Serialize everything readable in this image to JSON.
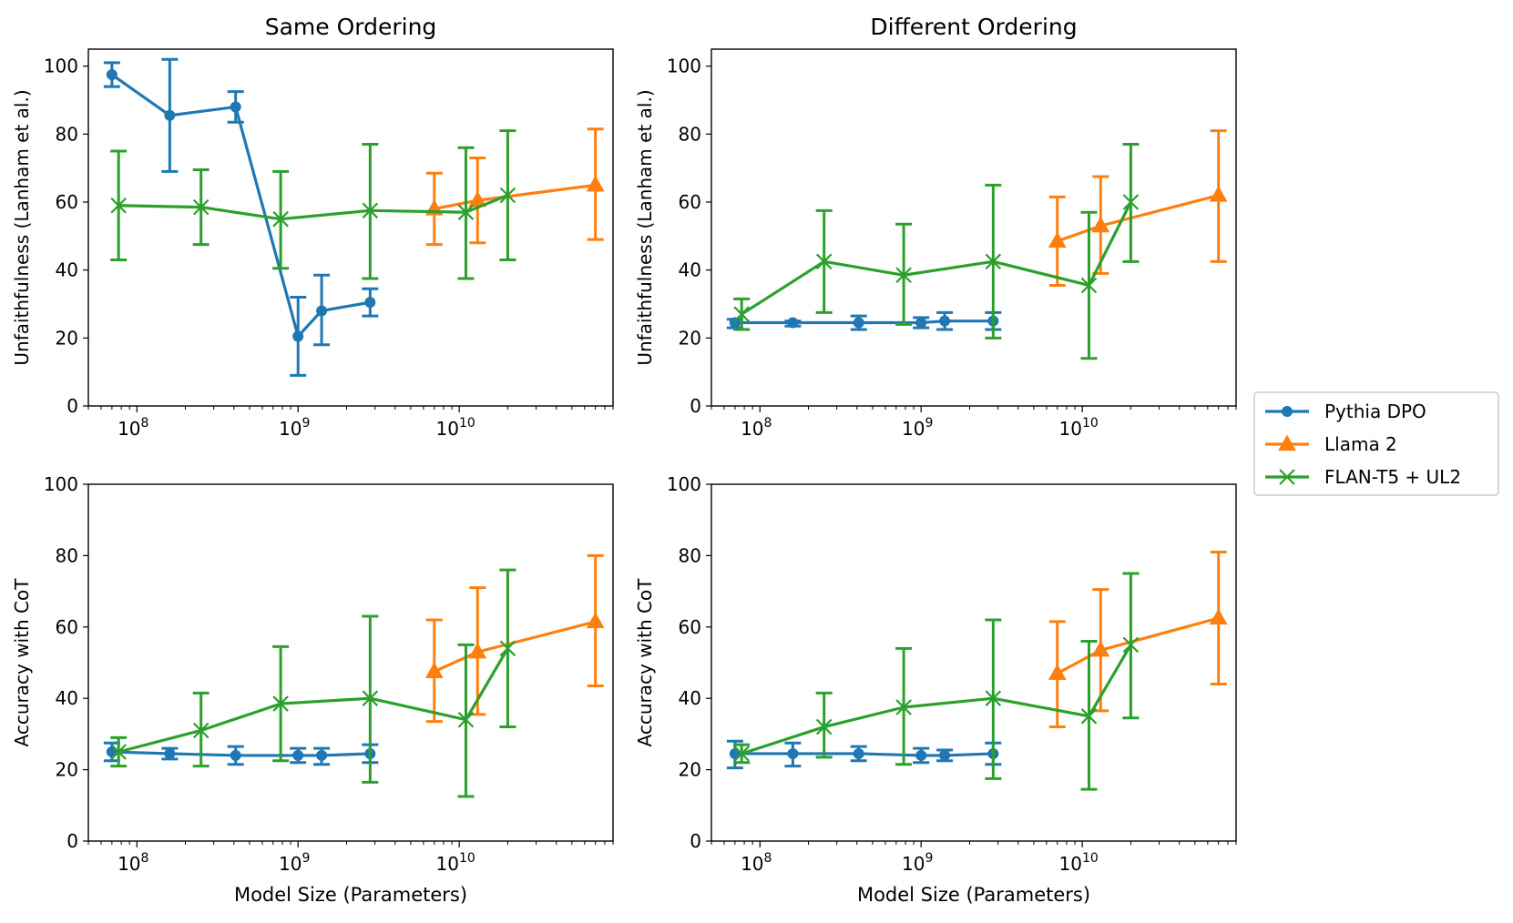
{
  "colors": {
    "pythia": "#1f77b4",
    "llama": "#ff7f0e",
    "flan": "#2ca02c",
    "axis": "#000000",
    "legend_border": "#cccccc"
  },
  "legend": [
    {
      "label": "Pythia DPO",
      "marker": "circle",
      "color_key": "pythia"
    },
    {
      "label": "Llama 2",
      "marker": "triangle",
      "color_key": "llama"
    },
    {
      "label": "FLAN-T5 + UL2",
      "marker": "x",
      "color_key": "flan"
    }
  ],
  "chart_data": [
    {
      "id": "same-unfaith",
      "type": "line",
      "title": "Same Ordering",
      "xlabel": "",
      "ylabel": "Unfaithfulness (Lanham et al.)",
      "xscale": "log",
      "xlim": [
        50000000,
        90000000000
      ],
      "ylim": [
        0,
        105
      ],
      "yticks": [
        0,
        20,
        40,
        60,
        80,
        100
      ],
      "xticks": [
        {
          "value": 100000000,
          "base": "10",
          "exp": "8"
        },
        {
          "value": 1000000000,
          "base": "10",
          "exp": "9"
        },
        {
          "value": 10000000000,
          "base": "10",
          "exp": "10"
        }
      ],
      "series": [
        {
          "name": "Pythia DPO",
          "x": [
            70000000,
            160000000,
            410000000,
            1000000000,
            1400000000,
            2800000000
          ],
          "y": [
            97.5,
            85.5,
            88,
            20.5,
            28,
            30.5
          ],
          "err_low": [
            94,
            69,
            83.5,
            9,
            18,
            26.5
          ],
          "err_high": [
            101,
            102,
            92.5,
            32,
            38.5,
            34.5
          ]
        },
        {
          "name": "Llama 2",
          "x": [
            7000000000,
            13000000000,
            70000000000
          ],
          "y": [
            58,
            60.5,
            65
          ],
          "err_low": [
            47.5,
            48,
            49
          ],
          "err_high": [
            68.5,
            73,
            81.5
          ]
        },
        {
          "name": "FLAN-T5 + UL2",
          "x": [
            77000000,
            250000000,
            780000000,
            2800000000,
            11000000000,
            20000000000
          ],
          "y": [
            59,
            58.5,
            55,
            57.5,
            57,
            62
          ],
          "err_low": [
            43,
            47.5,
            40.5,
            37.5,
            37.5,
            43
          ],
          "err_high": [
            75,
            69.5,
            69,
            77,
            76,
            81
          ]
        }
      ]
    },
    {
      "id": "diff-unfaith",
      "type": "line",
      "title": "Different Ordering",
      "xlabel": "",
      "ylabel": "Unfaithfulness (Lanham et al.)",
      "xscale": "log",
      "xlim": [
        50000000,
        90000000000
      ],
      "ylim": [
        0,
        105
      ],
      "yticks": [
        0,
        20,
        40,
        60,
        80,
        100
      ],
      "xticks": [
        {
          "value": 100000000,
          "base": "10",
          "exp": "8"
        },
        {
          "value": 1000000000,
          "base": "10",
          "exp": "9"
        },
        {
          "value": 10000000000,
          "base": "10",
          "exp": "10"
        }
      ],
      "series": [
        {
          "name": "Pythia DPO",
          "x": [
            70000000,
            160000000,
            410000000,
            1000000000,
            1400000000,
            2800000000
          ],
          "y": [
            24.5,
            24.5,
            24.5,
            24.5,
            25,
            25
          ],
          "err_low": [
            23,
            23.5,
            22.5,
            23,
            22.5,
            22.5
          ],
          "err_high": [
            25.5,
            25,
            26.5,
            26,
            27.5,
            27.5
          ]
        },
        {
          "name": "Llama 2",
          "x": [
            7000000000,
            13000000000,
            70000000000
          ],
          "y": [
            48.5,
            53,
            62
          ],
          "err_low": [
            35.5,
            39,
            42.5
          ],
          "err_high": [
            61.5,
            67.5,
            81
          ]
        },
        {
          "name": "FLAN-T5 + UL2",
          "x": [
            77000000,
            250000000,
            780000000,
            2800000000,
            11000000000,
            20000000000
          ],
          "y": [
            27,
            42.5,
            38.5,
            42.5,
            35.5,
            60
          ],
          "err_low": [
            22.5,
            27.5,
            24,
            20,
            14,
            42.5
          ],
          "err_high": [
            31.5,
            57.5,
            53.5,
            65,
            57,
            77
          ]
        }
      ]
    },
    {
      "id": "same-acc",
      "type": "line",
      "title": "",
      "xlabel": "Model Size (Parameters)",
      "ylabel": "Accuracy with CoT",
      "xscale": "log",
      "xlim": [
        50000000,
        90000000000
      ],
      "ylim": [
        0,
        100
      ],
      "yticks": [
        0,
        20,
        40,
        60,
        80,
        100
      ],
      "xticks": [
        {
          "value": 100000000,
          "base": "10",
          "exp": "8"
        },
        {
          "value": 1000000000,
          "base": "10",
          "exp": "9"
        },
        {
          "value": 10000000000,
          "base": "10",
          "exp": "10"
        }
      ],
      "series": [
        {
          "name": "Pythia DPO",
          "x": [
            70000000,
            160000000,
            410000000,
            1000000000,
            1400000000,
            2800000000
          ],
          "y": [
            25,
            24.5,
            24,
            24,
            24,
            24.5
          ],
          "err_low": [
            22.5,
            23,
            21.5,
            22,
            21.5,
            22
          ],
          "err_high": [
            27.5,
            26,
            26.5,
            26,
            26,
            27
          ]
        },
        {
          "name": "Llama 2",
          "x": [
            7000000000,
            13000000000,
            70000000000
          ],
          "y": [
            47.5,
            53,
            61.5
          ],
          "err_low": [
            33.5,
            35.5,
            43.5
          ],
          "err_high": [
            62,
            71,
            80
          ]
        },
        {
          "name": "FLAN-T5 + UL2",
          "x": [
            77000000,
            250000000,
            780000000,
            2800000000,
            11000000000,
            20000000000
          ],
          "y": [
            25,
            31,
            38.5,
            40,
            34,
            54
          ],
          "err_low": [
            21,
            21,
            22.5,
            16.5,
            12.5,
            32
          ],
          "err_high": [
            29,
            41.5,
            54.5,
            63,
            55,
            76
          ]
        }
      ]
    },
    {
      "id": "diff-acc",
      "type": "line",
      "title": "",
      "xlabel": "Model Size (Parameters)",
      "ylabel": "Accuracy with CoT",
      "xscale": "log",
      "xlim": [
        50000000,
        90000000000
      ],
      "ylim": [
        0,
        100
      ],
      "yticks": [
        0,
        20,
        40,
        60,
        80,
        100
      ],
      "xticks": [
        {
          "value": 100000000,
          "base": "10",
          "exp": "8"
        },
        {
          "value": 1000000000,
          "base": "10",
          "exp": "9"
        },
        {
          "value": 10000000000,
          "base": "10",
          "exp": "10"
        }
      ],
      "series": [
        {
          "name": "Pythia DPO",
          "x": [
            70000000,
            160000000,
            410000000,
            1000000000,
            1400000000,
            2800000000
          ],
          "y": [
            24.5,
            24.5,
            24.5,
            24,
            24,
            24.5
          ],
          "err_low": [
            20.5,
            21,
            22.5,
            22,
            22.5,
            21.5
          ],
          "err_high": [
            28,
            27.5,
            26.5,
            26,
            25.5,
            27.5
          ]
        },
        {
          "name": "Llama 2",
          "x": [
            7000000000,
            13000000000,
            70000000000
          ],
          "y": [
            47,
            53.5,
            62.5
          ],
          "err_low": [
            32,
            36.5,
            44
          ],
          "err_high": [
            61.5,
            70.5,
            81
          ]
        },
        {
          "name": "FLAN-T5 + UL2",
          "x": [
            77000000,
            250000000,
            780000000,
            2800000000,
            11000000000,
            20000000000
          ],
          "y": [
            24.5,
            32,
            37.5,
            40,
            35,
            55
          ],
          "err_low": [
            22,
            23.5,
            21.5,
            17.5,
            14.5,
            34.5
          ],
          "err_high": [
            27,
            41.5,
            54,
            62,
            56,
            75
          ]
        }
      ]
    }
  ]
}
